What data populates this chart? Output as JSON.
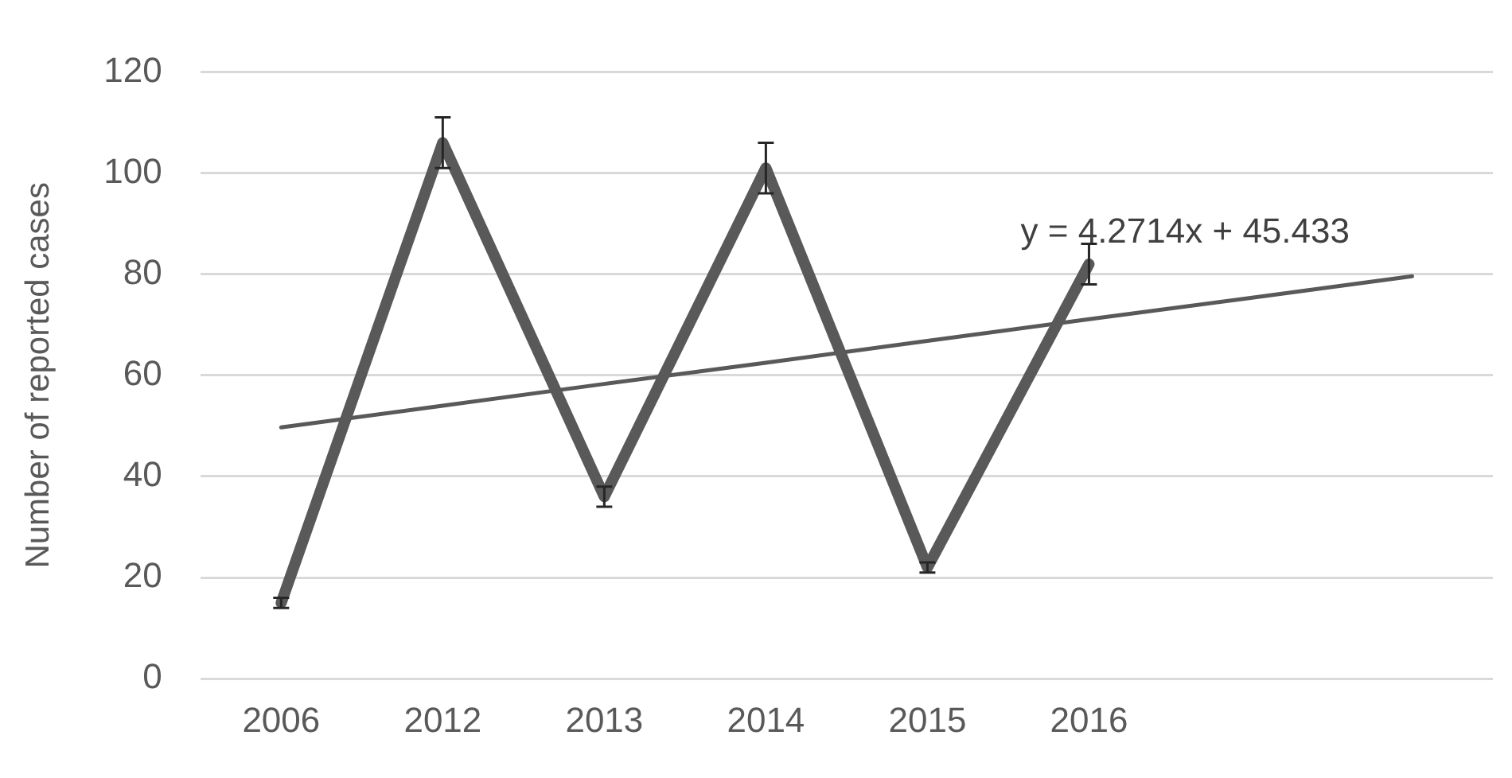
{
  "chart_data": {
    "type": "line",
    "ylabel": "Number of reported cases",
    "categories": [
      "2006",
      "2012",
      "2013",
      "2014",
      "2015",
      "2016",
      null,
      null
    ],
    "series": [
      {
        "color": "#595959",
        "values": [
          15,
          106,
          36,
          101,
          22,
          82,
          null,
          null
        ],
        "errors": [
          1,
          5,
          2,
          5,
          1,
          4,
          null,
          null
        ]
      },
      {
        "color": "#595959",
        "values": [
          49.7,
          54.0,
          58.3,
          62.5,
          66.8,
          71.1,
          75.3,
          79.6
        ]
      }
    ],
    "annotations": [
      "y = 4.2714x + 45.433"
    ],
    "ylim": [
      0,
      120
    ],
    "yticks": [
      0,
      20,
      40,
      60,
      80,
      100,
      120
    ],
    "grid": "y",
    "legend": false,
    "line_style": "solid"
  }
}
